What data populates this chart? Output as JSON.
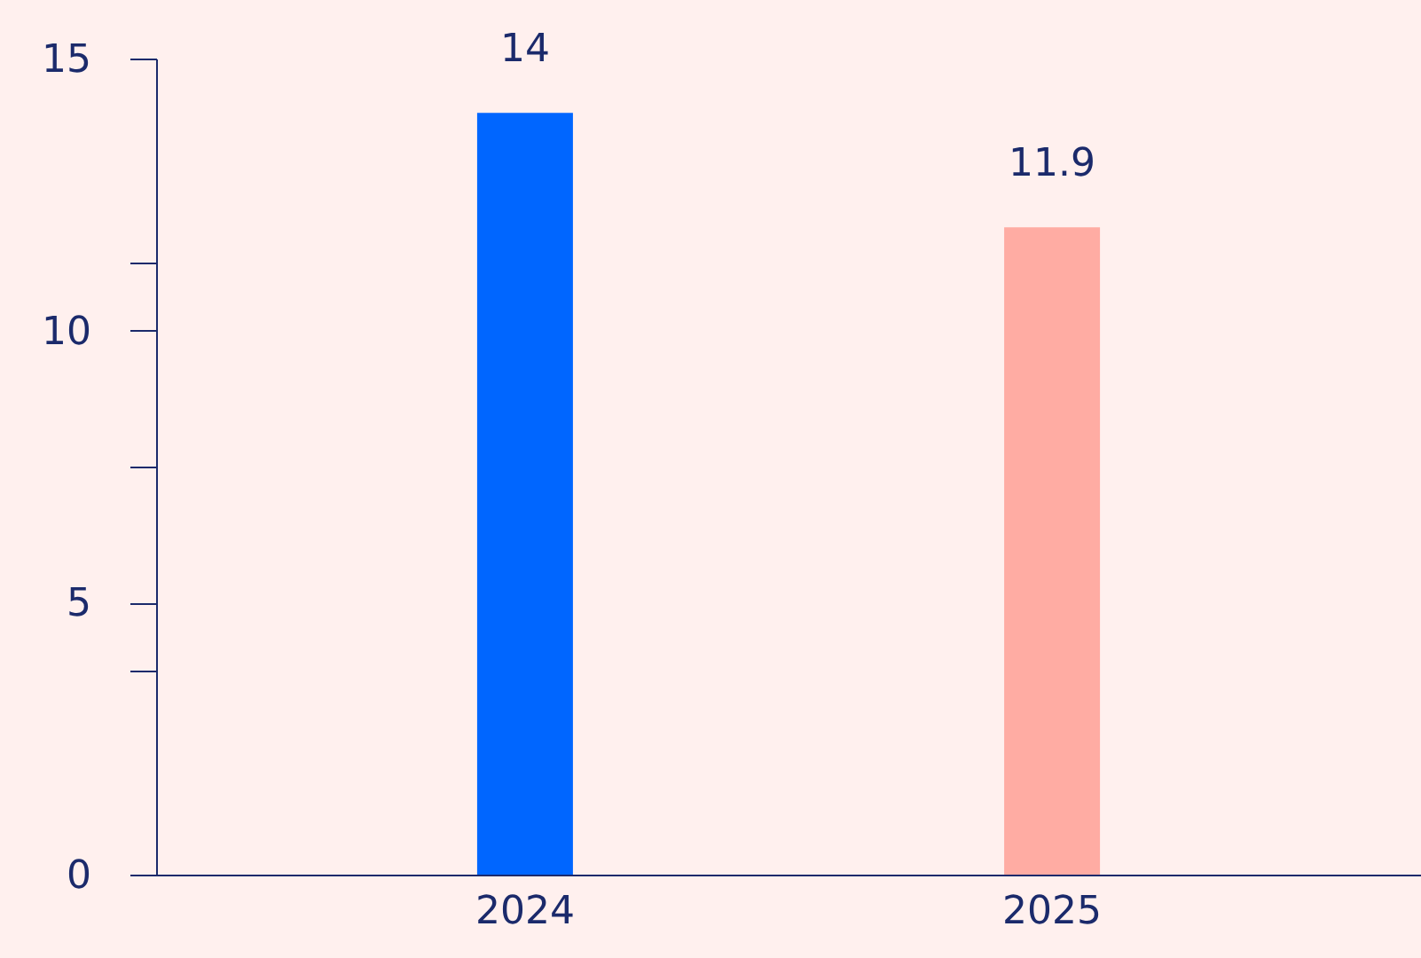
{
  "chart_data": {
    "type": "bar",
    "categories": [
      "2024",
      "2025"
    ],
    "values": [
      14,
      11.9
    ],
    "colors": [
      "#0066ff",
      "#ffaca3"
    ],
    "ylim": [
      0,
      15
    ],
    "yticks": [
      0,
      {
        "value": 3.75,
        "label": null
      },
      5,
      {
        "value": 7.5,
        "label": null
      },
      10,
      {
        "value": 11.25,
        "label": null
      },
      15
    ],
    "grid": false,
    "data_labels": true
  }
}
